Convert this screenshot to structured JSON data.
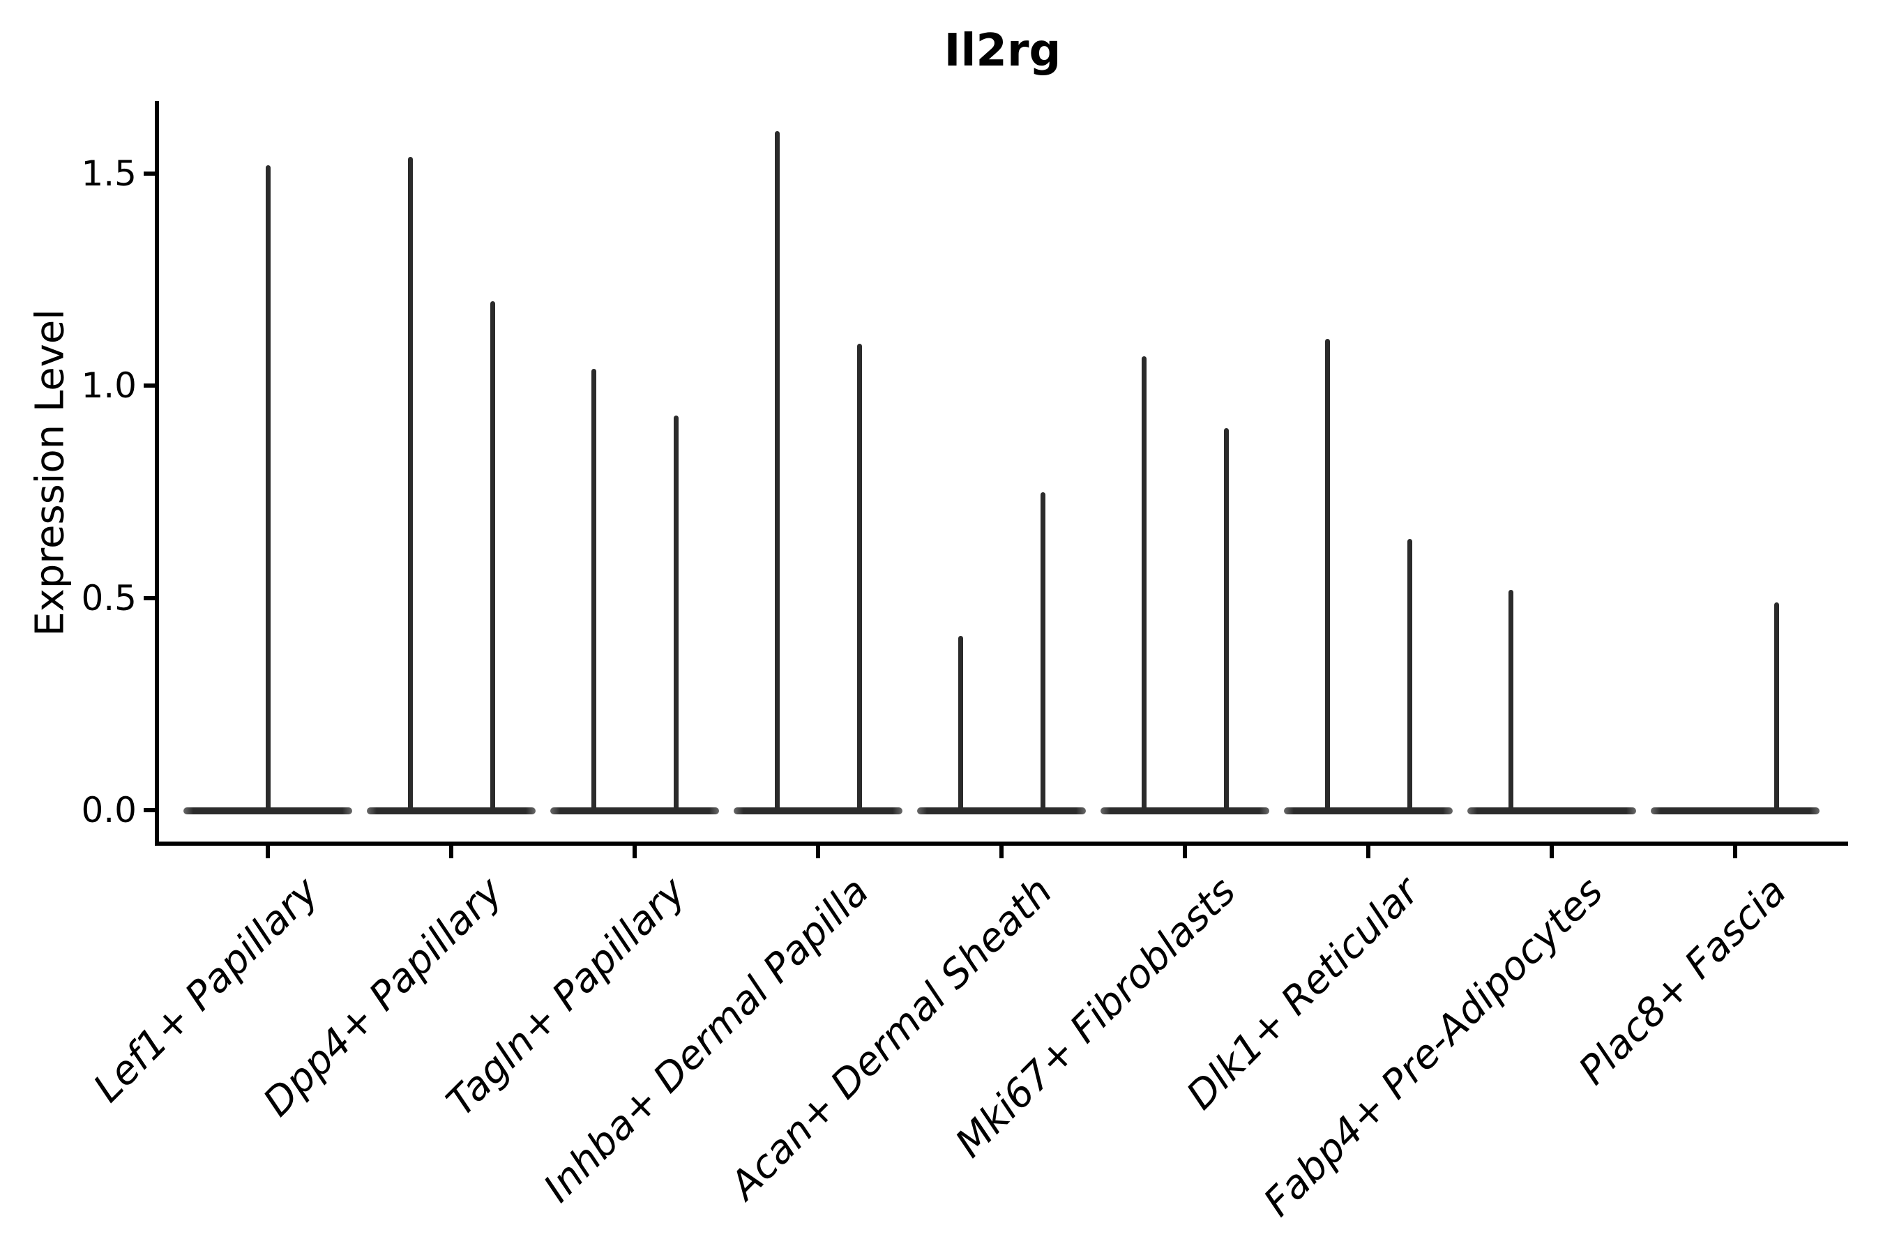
{
  "figure": {
    "title": "Il2rg",
    "background": "#ffffff"
  },
  "axes": {
    "ylabel": "Expression Level",
    "ytick_labels": [
      "0.0",
      "0.5",
      "1.0",
      "1.5"
    ],
    "axis_color": "#000000",
    "violin_color": "#2b2b2b"
  },
  "chart_data": {
    "type": "violin",
    "title": "Il2rg",
    "ylabel": "Expression Level",
    "xlabel": "",
    "ylim": [
      0,
      1.67
    ],
    "yticks": [
      0,
      0.5,
      1.0,
      1.5
    ],
    "grid": false,
    "legend": "none",
    "style": "zero-inflated violins: wide flat body at 0 expression with a thin vertical density spike up to the max expression; two dodged groups per category where present",
    "categories": [
      "Lef1+ Papillary",
      "Dpp4+ Papillary",
      "Tagln+ Papillary",
      "Inhba+ Dermal Papilla",
      "Acan+ Dermal Sheath",
      "Mki67+ Fibroblasts",
      "Dlk1+ Reticular",
      "Fabp4+ Pre-Adipocytes",
      "Plac8+ Fascia"
    ],
    "violins": [
      {
        "category": "Lef1+ Papillary",
        "spikes": [
          {
            "pos": "center",
            "max": 1.52
          }
        ]
      },
      {
        "category": "Dpp4+ Papillary",
        "spikes": [
          {
            "pos": "left",
            "max": 1.54
          },
          {
            "pos": "right",
            "max": 1.2
          }
        ]
      },
      {
        "category": "Tagln+ Papillary",
        "spikes": [
          {
            "pos": "left",
            "max": 1.04
          },
          {
            "pos": "right",
            "max": 0.93
          }
        ]
      },
      {
        "category": "Inhba+ Dermal Papilla",
        "spikes": [
          {
            "pos": "left",
            "max": 1.6
          },
          {
            "pos": "right",
            "max": 1.1
          }
        ]
      },
      {
        "category": "Acan+ Dermal Sheath",
        "spikes": [
          {
            "pos": "left",
            "max": 0.41
          },
          {
            "pos": "right",
            "max": 0.75
          }
        ]
      },
      {
        "category": "Mki67+ Fibroblasts",
        "spikes": [
          {
            "pos": "left",
            "max": 1.07
          },
          {
            "pos": "right",
            "max": 0.9
          }
        ]
      },
      {
        "category": "Dlk1+ Reticular",
        "spikes": [
          {
            "pos": "left",
            "max": 1.11
          },
          {
            "pos": "right",
            "max": 0.64
          }
        ]
      },
      {
        "category": "Fabp4+ Pre-Adipocytes",
        "spikes": [
          {
            "pos": "left",
            "max": 0.52
          }
        ]
      },
      {
        "category": "Plac8+ Fascia",
        "spikes": [
          {
            "pos": "right",
            "max": 0.49
          }
        ]
      }
    ]
  }
}
